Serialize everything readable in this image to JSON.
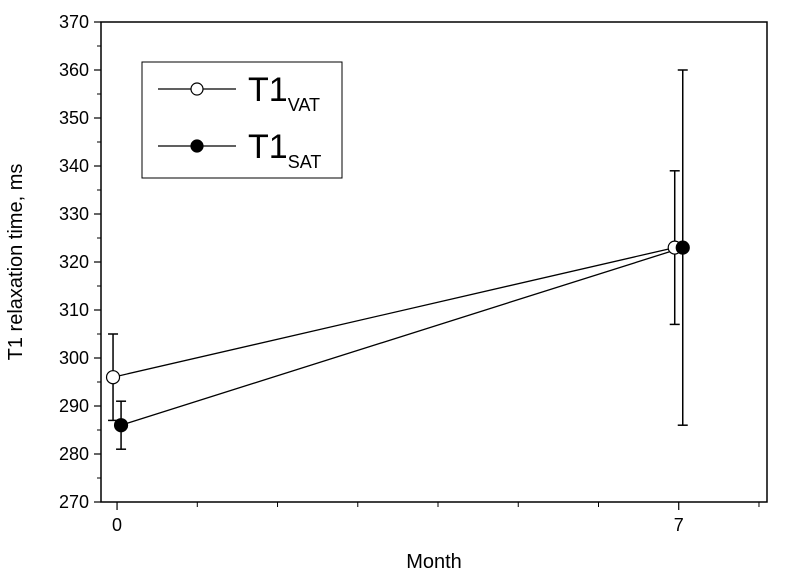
{
  "chart_data": {
    "type": "line",
    "xlabel": "Month",
    "ylabel": "T1 relaxation time, ms",
    "xlim": [
      -0.2,
      8.1
    ],
    "ylim": [
      270,
      370
    ],
    "xticks": [
      0,
      7
    ],
    "xtick_labels": [
      "0",
      "7"
    ],
    "x_minor_ticks": [
      1,
      2,
      3,
      4,
      5,
      6,
      8
    ],
    "yticks": [
      270,
      280,
      290,
      300,
      310,
      320,
      330,
      340,
      350,
      360,
      370
    ],
    "ytick_labels": [
      "270",
      "280",
      "290",
      "300",
      "310",
      "320",
      "330",
      "340",
      "350",
      "360",
      "370"
    ],
    "grid": false,
    "legend_position": "top-left",
    "series": [
      {
        "name_main": "T1",
        "name_sub": "VAT",
        "marker": "open-circle",
        "color": "#000000",
        "x": [
          0,
          7
        ],
        "y": [
          296,
          323
        ],
        "error_low": [
          287,
          307
        ],
        "error_high": [
          305,
          339
        ]
      },
      {
        "name_main": "T1",
        "name_sub": "SAT",
        "marker": "filled-circle",
        "color": "#000000",
        "x": [
          0,
          7
        ],
        "y": [
          286,
          323
        ],
        "error_low": [
          281,
          286
        ],
        "error_high": [
          291,
          360
        ]
      }
    ]
  }
}
